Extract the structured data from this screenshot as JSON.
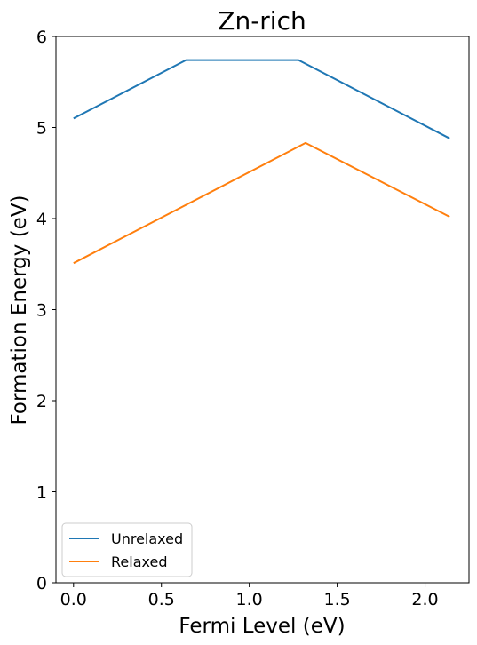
{
  "chart_data": {
    "type": "line",
    "title": "Zn-rich",
    "xlabel": "Fermi Level (eV)",
    "ylabel": "Formation Energy (eV)",
    "xlim": [
      -0.1,
      2.25
    ],
    "ylim": [
      0,
      6
    ],
    "xticks": [
      0.0,
      0.5,
      1.0,
      1.5,
      2.0
    ],
    "xtick_labels": [
      "0.0",
      "0.5",
      "1.0",
      "1.5",
      "2.0"
    ],
    "yticks": [
      0,
      1,
      2,
      3,
      4,
      5,
      6
    ],
    "ytick_labels": [
      "0",
      "1",
      "2",
      "3",
      "4",
      "5",
      "6"
    ],
    "grid": false,
    "legend_position": "lower-left",
    "series": [
      {
        "name": "Unrelaxed",
        "color": "#1f77b4",
        "points": [
          [
            0.0,
            5.1
          ],
          [
            0.64,
            5.74
          ],
          [
            1.28,
            5.74
          ],
          [
            2.14,
            4.88
          ]
        ]
      },
      {
        "name": "Relaxed",
        "color": "#ff7f0e",
        "points": [
          [
            0.0,
            3.51
          ],
          [
            1.32,
            4.83
          ],
          [
            2.14,
            4.02
          ]
        ]
      }
    ]
  }
}
